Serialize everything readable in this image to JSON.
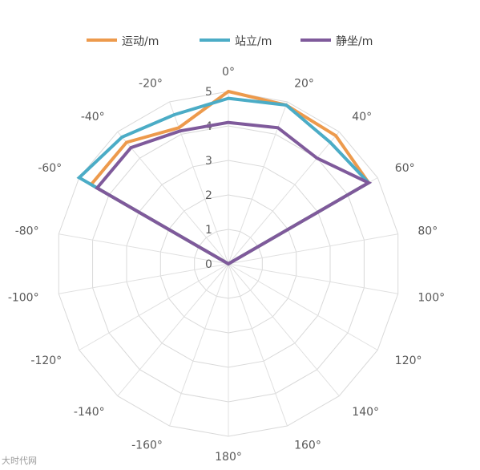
{
  "chart_data": {
    "type": "radar",
    "categories": [
      "0°",
      "20°",
      "40°",
      "60°",
      "80°",
      "100°",
      "120°",
      "140°",
      "160°",
      "180°",
      "-160°",
      "-140°",
      "-120°",
      "-100°",
      "-80°",
      "-60°",
      "-40°",
      "-20°"
    ],
    "angles_deg": [
      0,
      20,
      40,
      60,
      80,
      100,
      120,
      140,
      160,
      180,
      -160,
      -140,
      -120,
      -100,
      -80,
      -60,
      -40,
      -20
    ],
    "radial_ticks": [
      "0",
      "1",
      "2",
      "3",
      "4",
      "5"
    ],
    "rmax": 5,
    "legend_position": "top",
    "series": [
      {
        "name": "运动/m",
        "color": "#ED9A4C",
        "values": [
          5.0,
          4.9,
          4.85,
          4.7,
          0,
          0,
          0,
          0,
          0,
          0,
          0,
          0,
          0,
          0,
          0,
          4.6,
          4.6,
          4.2
        ]
      },
      {
        "name": "站立/m",
        "color": "#4BACC6",
        "values": [
          4.8,
          4.9,
          4.6,
          4.7,
          0,
          0,
          0,
          0,
          0,
          0,
          0,
          0,
          0,
          0,
          0,
          5.0,
          4.8,
          4.6
        ]
      },
      {
        "name": "静坐/m",
        "color": "#7F5A9B",
        "values": [
          4.1,
          4.2,
          4.0,
          4.7,
          0,
          0,
          0,
          0,
          0,
          0,
          0,
          0,
          0,
          0,
          0,
          4.4,
          4.4,
          4.1
        ]
      }
    ]
  },
  "watermark": "大时代网"
}
